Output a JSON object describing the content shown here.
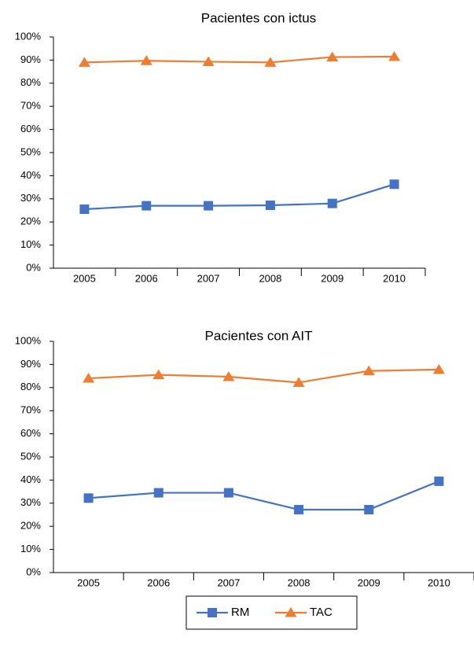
{
  "chart_data": [
    {
      "type": "line",
      "title": "Pacientes con ictus",
      "categories": [
        "2005",
        "2006",
        "2007",
        "2008",
        "2009",
        "2010"
      ],
      "ylim": [
        0,
        100
      ],
      "yticks": [
        {
          "value": 0,
          "label": "0%"
        },
        {
          "value": 10,
          "label": "10%"
        },
        {
          "value": 20,
          "label": "20%"
        },
        {
          "value": 30,
          "label": "30%"
        },
        {
          "value": 40,
          "label": "40%"
        },
        {
          "value": 50,
          "label": "50%"
        },
        {
          "value": 60,
          "label": "60%"
        },
        {
          "value": 70,
          "label": "70%"
        },
        {
          "value": 80,
          "label": "80%"
        },
        {
          "value": 90,
          "label": "90%"
        },
        {
          "value": 100,
          "label": "100%"
        }
      ],
      "series": [
        {
          "name": "RM",
          "color": "#4472c4",
          "marker": "square",
          "values": [
            25.5,
            27,
            27,
            27.2,
            28,
            36.3
          ]
        },
        {
          "name": "TAC",
          "color": "#ed7d31",
          "marker": "triangle",
          "values": [
            89,
            89.7,
            89.3,
            89,
            91.3,
            91.5
          ]
        }
      ]
    },
    {
      "type": "line",
      "title": "Pacientes con AIT",
      "categories": [
        "2005",
        "2006",
        "2007",
        "2008",
        "2009",
        "2010"
      ],
      "ylim": [
        0,
        100
      ],
      "yticks": [
        {
          "value": 0,
          "label": "0%"
        },
        {
          "value": 10,
          "label": "10%"
        },
        {
          "value": 20,
          "label": "20%"
        },
        {
          "value": 30,
          "label": "30%"
        },
        {
          "value": 40,
          "label": "40%"
        },
        {
          "value": 50,
          "label": "50%"
        },
        {
          "value": 60,
          "label": "60%"
        },
        {
          "value": 70,
          "label": "70%"
        },
        {
          "value": 80,
          "label": "80%"
        },
        {
          "value": 90,
          "label": "90%"
        },
        {
          "value": 100,
          "label": "100%"
        }
      ],
      "series": [
        {
          "color": "#4472c4",
          "marker": "square",
          "values": [
            32.2,
            34.5,
            34.5,
            27.2,
            27.2,
            39.5
          ]
        },
        {
          "color": "#ed7d31",
          "marker": "triangle",
          "values": [
            84,
            85.5,
            84.7,
            82.2,
            87.2,
            87.8
          ]
        }
      ]
    }
  ]
}
